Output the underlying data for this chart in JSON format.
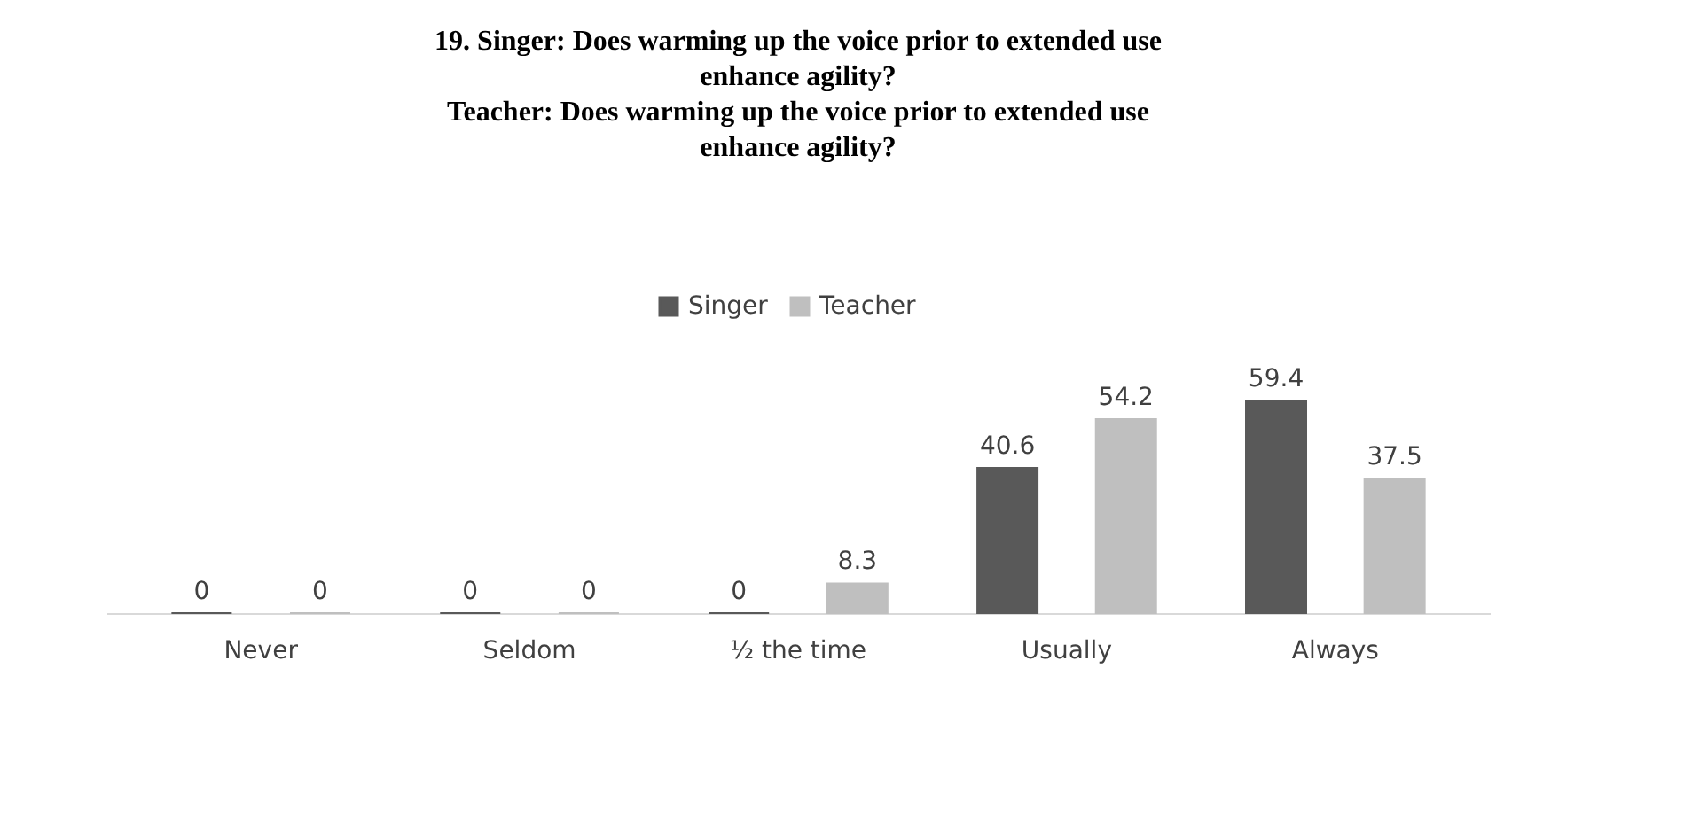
{
  "chart_data": {
    "type": "bar",
    "title": [
      "19. Singer: Does warming up the voice prior to extended use",
      "enhance agility?",
      "Teacher: Does warming up the voice prior to extended use",
      "enhance agility?"
    ],
    "categories": [
      "Never",
      "Seldom",
      "½ the time",
      "Usually",
      "Always"
    ],
    "series": [
      {
        "name": "Singer",
        "color": "#595959",
        "values": [
          0,
          0,
          0,
          40.6,
          59.4
        ]
      },
      {
        "name": "Teacher",
        "color": "#bfbfbf",
        "values": [
          0,
          0,
          8.3,
          54.2,
          37.5
        ]
      }
    ],
    "data_labels": true,
    "legend": "top",
    "grid": false
  }
}
